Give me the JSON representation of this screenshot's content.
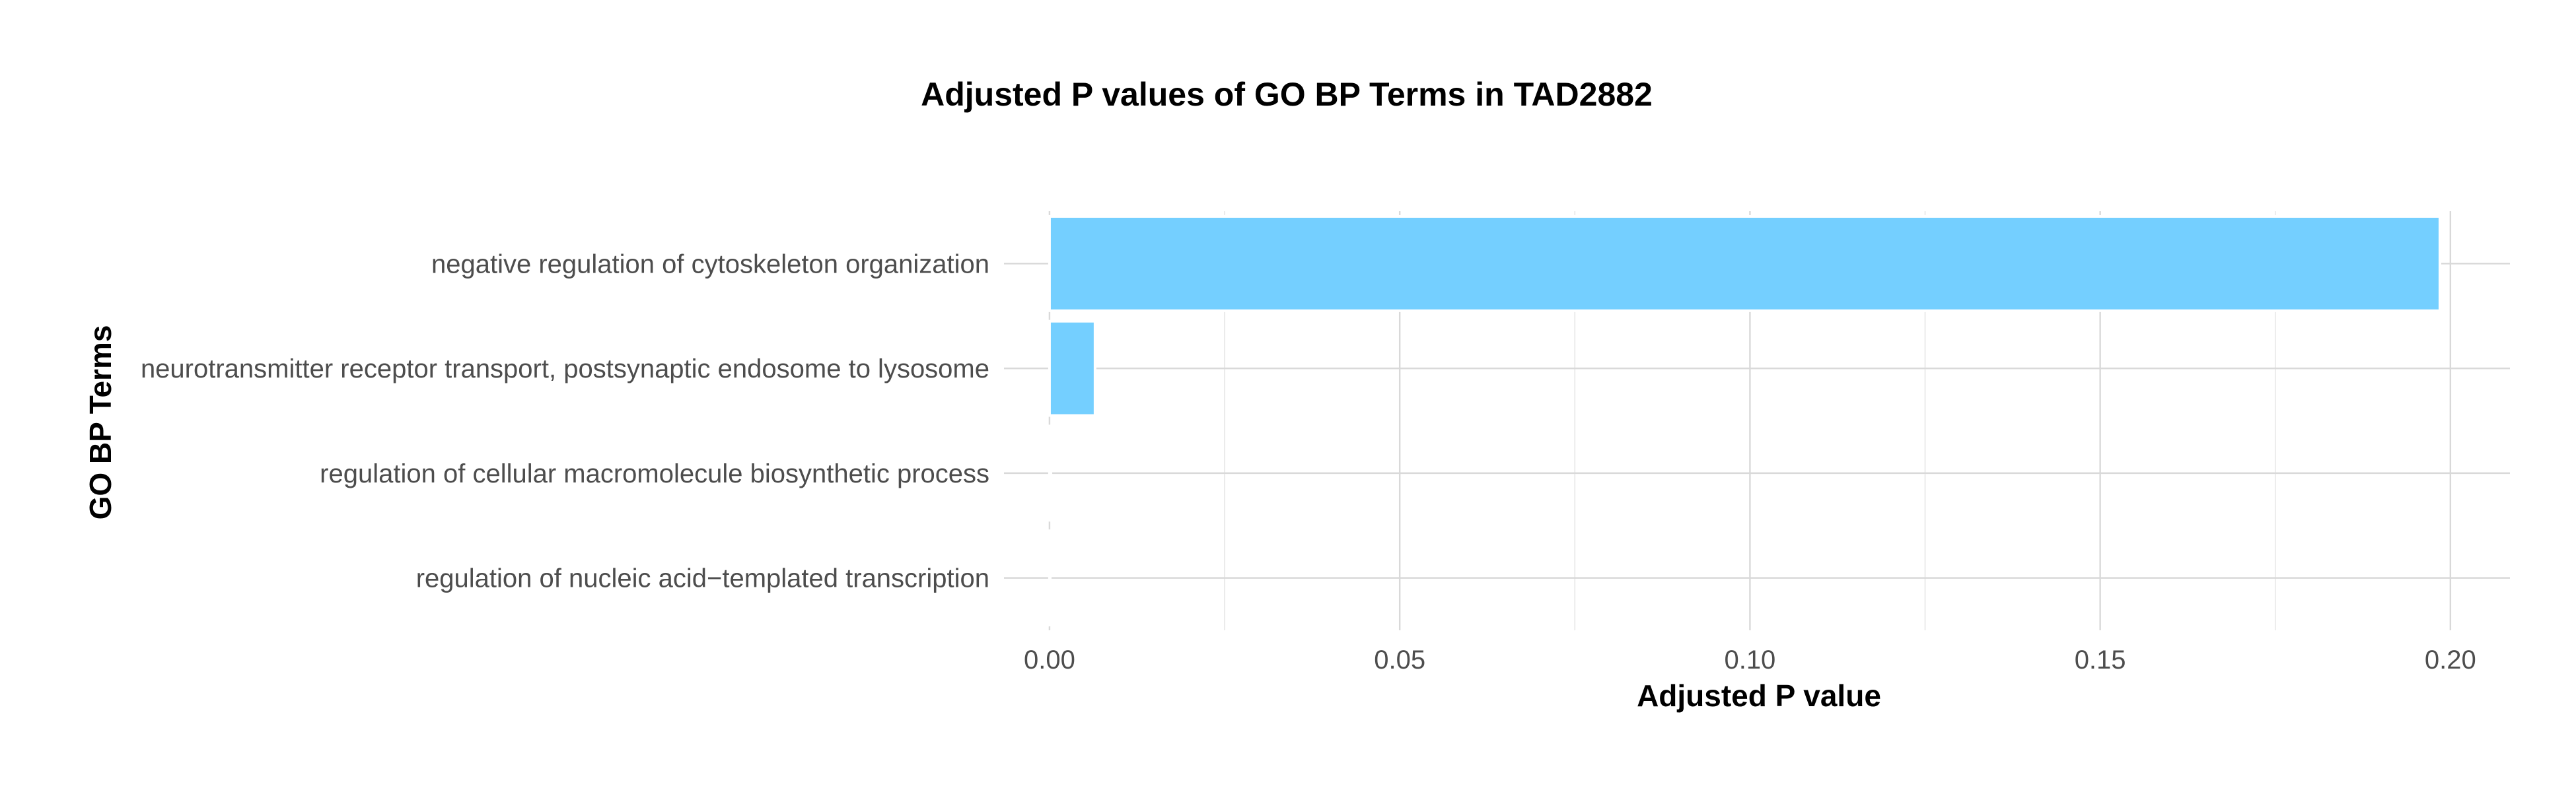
{
  "chart_data": {
    "type": "bar",
    "orientation": "horizontal",
    "title": "Adjusted P values of GO BP Terms in TAD2882",
    "xlabel": "Adjusted P value",
    "ylabel": "GO BP Terms",
    "categories": [
      "negative regulation of cytoskeleton organization",
      "neurotransmitter receptor transport, postsynaptic endosome to lysosome",
      "regulation of cellular macromolecule biosynthetic process",
      "regulation of nucleic acid−templated transcription"
    ],
    "values": [
      0.1985,
      0.0065,
      0.0002,
      0.0001
    ],
    "xlim": [
      -0.0065,
      0.2085
    ],
    "xticks": [
      0.0,
      0.05,
      0.1,
      0.15,
      0.2
    ],
    "xtick_labels": [
      "0.00",
      "0.05",
      "0.10",
      "0.15",
      "0.20"
    ],
    "bar_color": "#74CFFF",
    "grid": true,
    "legend": "none"
  }
}
